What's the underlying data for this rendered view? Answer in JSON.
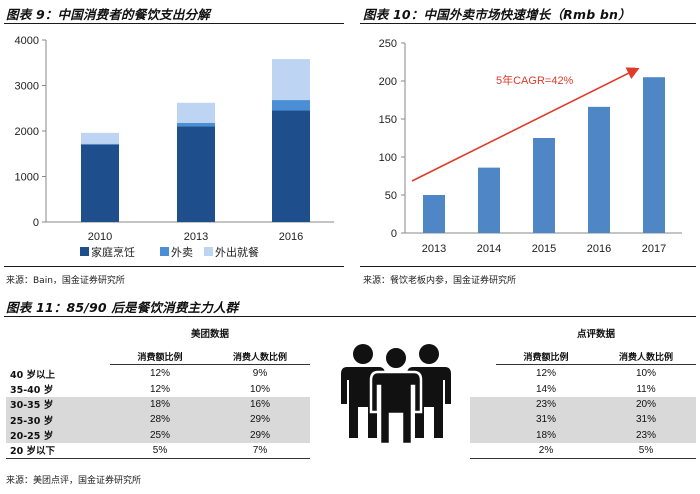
{
  "fig9": {
    "title": "图表 9：中国消费者的餐饮支出分解",
    "source": "来源：Bain，国金证券研究所"
  },
  "fig10": {
    "title": "图表 10：中国外卖市场快速增长（Rmb bn）",
    "source": "来源：餐饮老板内参，国金证券研究所",
    "annotation": "5年CAGR=42%"
  },
  "fig11": {
    "title": "图表 11：85/90 后是餐饮消费主力人群",
    "source": "来源：美团点评，国金证券研究所",
    "icon": "group-of-people-icon",
    "meituan": {
      "title": "美团数据",
      "headers": [
        "消费额比例",
        "消费人数比例"
      ],
      "rows": [
        {
          "age": "40 岁以上",
          "amount": "12%",
          "people": "9%"
        },
        {
          "age": "35-40 岁",
          "amount": "12%",
          "people": "10%"
        },
        {
          "age": "30-35 岁",
          "amount": "18%",
          "people": "16%"
        },
        {
          "age": "25-30 岁",
          "amount": "28%",
          "people": "29%"
        },
        {
          "age": "20-25 岁",
          "amount": "25%",
          "people": "29%"
        },
        {
          "age": "20 岁以下",
          "amount": "5%",
          "people": "7%"
        }
      ]
    },
    "dianping": {
      "title": "点评数据",
      "headers": [
        "消费额比例",
        "消费人数比例"
      ],
      "rows": [
        {
          "amount": "12%",
          "people": "10%"
        },
        {
          "amount": "14%",
          "people": "11%"
        },
        {
          "amount": "23%",
          "people": "20%"
        },
        {
          "amount": "31%",
          "people": "31%"
        },
        {
          "amount": "18%",
          "people": "23%"
        },
        {
          "amount": "2%",
          "people": "5%"
        }
      ]
    }
  },
  "colors": {
    "dark_blue": "#1f4e8c",
    "mid_blue": "#4a8fd6",
    "light_blue": "#bdd4f2",
    "bar_blue": "#4f86c6",
    "arrow_red": "#e03a2a",
    "shade": "#d9d9d9"
  },
  "chart_data": [
    {
      "type": "bar",
      "stacked": true,
      "categories": [
        "2010",
        "2013",
        "2016"
      ],
      "series": [
        {
          "name": "家庭烹饪",
          "values": [
            1700,
            2100,
            2450
          ]
        },
        {
          "name": "外卖",
          "values": [
            20,
            80,
            230
          ]
        },
        {
          "name": "外出就餐",
          "values": [
            240,
            440,
            900
          ]
        }
      ],
      "ylim": [
        0,
        4000
      ],
      "yticks": [
        "0",
        "1000",
        "2000",
        "3000",
        "4000"
      ],
      "grid": false,
      "legend": "bottom"
    },
    {
      "type": "bar",
      "categories": [
        "2013",
        "2014",
        "2015",
        "2016",
        "2017"
      ],
      "values": [
        50,
        86,
        125,
        166,
        205
      ],
      "ylim": [
        0,
        250
      ],
      "yticks": [
        "0",
        "50",
        "100",
        "150",
        "200",
        "250"
      ],
      "grid": false
    }
  ]
}
